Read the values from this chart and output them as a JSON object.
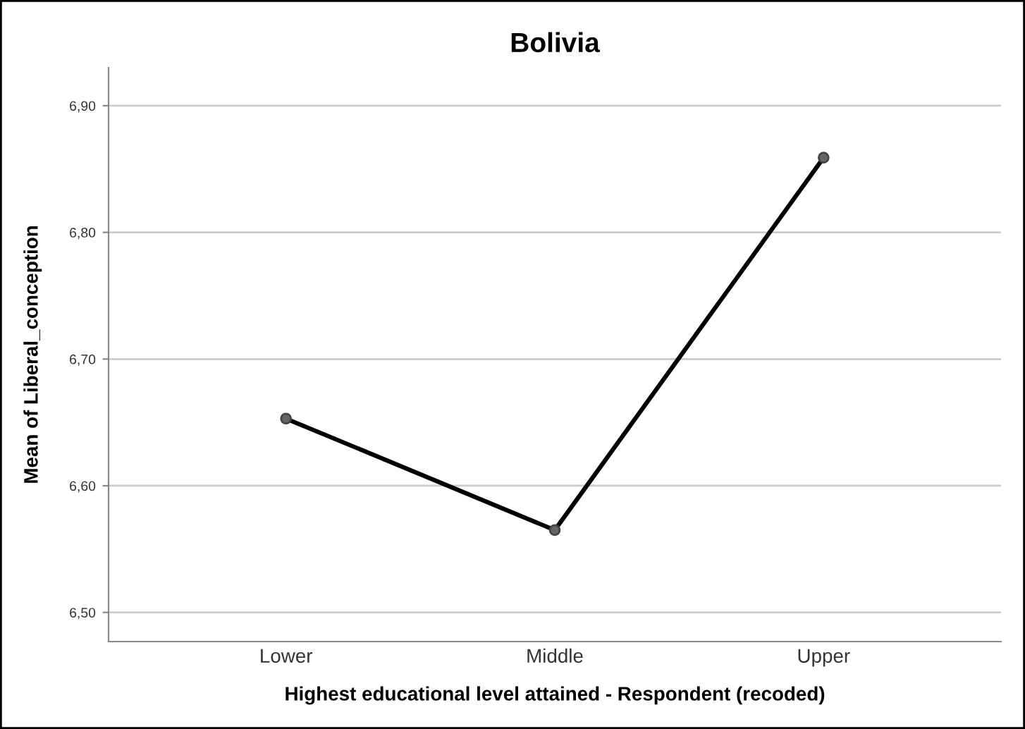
{
  "chart_data": {
    "type": "line",
    "title": "Bolivia",
    "xlabel": "Highest educational level attained - Respondent (recoded)",
    "ylabel": "Mean of Liberal_conception",
    "categories": [
      "Lower",
      "Middle",
      "Upper"
    ],
    "series": [
      {
        "color": "#000000",
        "values": [
          6.653,
          6.565,
          6.859
        ]
      }
    ],
    "marker": "circle",
    "line_style": "solid",
    "grid": "y",
    "ylim": [
      6.477,
      6.93
    ],
    "yticks": [
      {
        "value": 6.5,
        "label": "6,50"
      },
      {
        "value": 6.6,
        "label": "6,60"
      },
      {
        "value": 6.7,
        "label": "6,70"
      },
      {
        "value": 6.8,
        "label": "6,80"
      },
      {
        "value": 6.9,
        "label": "6,90"
      }
    ]
  }
}
